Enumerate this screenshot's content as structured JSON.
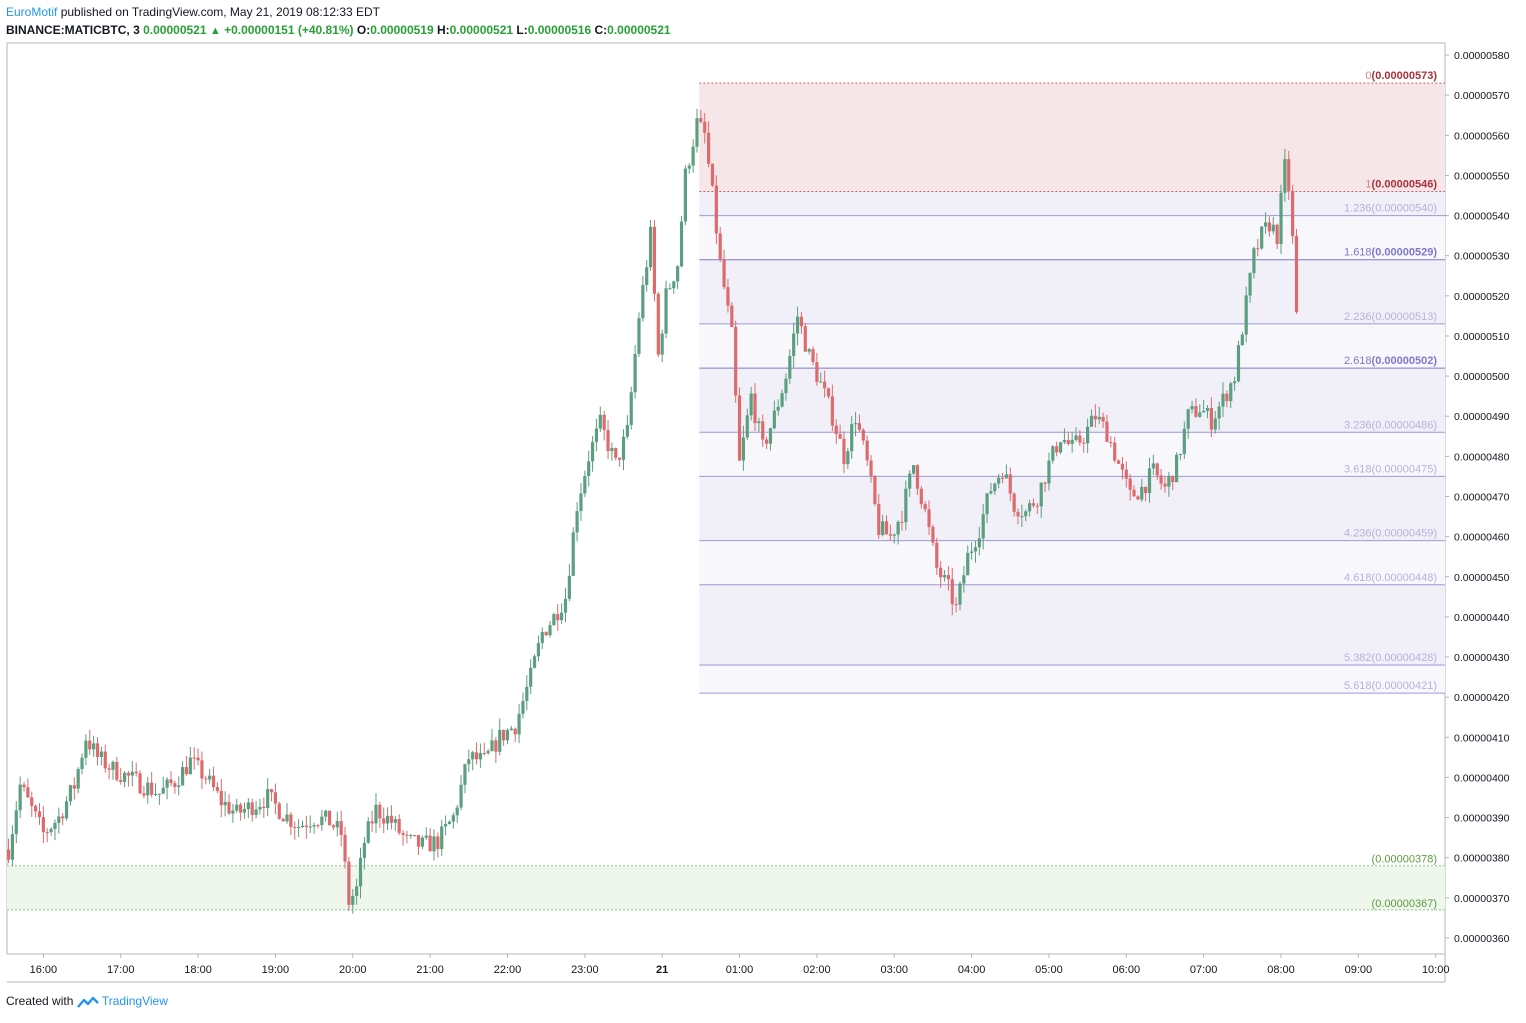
{
  "header": {
    "author": "EuroMotif",
    "published_text": "published on TradingView.com, May 21, 2019 08:12:33 EDT",
    "symbol": "BINANCE:MATICBTC, 3",
    "last": "0.00000521",
    "change": "+0.00000151 (+40.81%)",
    "o_label": "O:",
    "o_value": "0.00000519",
    "h_label": "H:",
    "h_value": "0.00000521",
    "l_label": "L:",
    "l_value": "0.00000516",
    "c_label": "C:",
    "c_value": "0.00000521"
  },
  "footer": {
    "created_with": "Created with",
    "brand": "TradingView"
  },
  "colors": {
    "up": "#5b9e80",
    "down": "#dc6b6e",
    "grid_border": "#b2b5be",
    "fib_line": "#9d99d6",
    "fib_label": "#b4b2dc",
    "fib_strong": "#7e78c8",
    "red_zone": "#f7e6e8",
    "red_line": "#cf5f66",
    "red_label": "#a8323a",
    "green_zone": "#eff6ec",
    "green_line": "#8fc28f",
    "green_label": "#5a9e40"
  },
  "chart_data": {
    "type": "candlestick",
    "symbol": "BINANCE:MATICBTC",
    "interval_minutes": 3,
    "ylim": [
      3.56e-06,
      5.83e-06
    ],
    "y_ticks": [
      "0.00000360",
      "0.00000370",
      "0.00000380",
      "0.00000390",
      "0.00000400",
      "0.00000410",
      "0.00000420",
      "0.00000430",
      "0.00000440",
      "0.00000450",
      "0.00000460",
      "0.00000470",
      "0.00000480",
      "0.00000490",
      "0.00000500",
      "0.00000510",
      "0.00000520",
      "0.00000530",
      "0.00000540",
      "0.00000550",
      "0.00000560",
      "0.00000570",
      "0.00000580"
    ],
    "x_ticks": [
      "16:00",
      "17:00",
      "18:00",
      "19:00",
      "20:00",
      "21:00",
      "22:00",
      "23:00",
      "21",
      "01:00",
      "02:00",
      "03:00",
      "04:00",
      "05:00",
      "06:00",
      "07:00",
      "08:00",
      "09:00",
      "10:00"
    ],
    "x_ticks_hours": [
      16,
      17,
      18,
      19,
      20,
      21,
      22,
      23,
      24,
      25,
      26,
      27,
      28,
      29,
      30,
      31,
      32,
      33,
      34
    ],
    "time_range_hours": [
      15.53,
      34.12
    ],
    "close_path": [
      [
        15.55,
        3.82e-06
      ],
      [
        15.7,
        3.98e-06
      ],
      [
        15.85,
        3.92e-06
      ],
      [
        16.0,
        3.86e-06
      ],
      [
        16.2,
        3.9e-06
      ],
      [
        16.4,
        3.98e-06
      ],
      [
        16.55,
        4.1e-06
      ],
      [
        16.7,
        4.05e-06
      ],
      [
        16.9,
        4.02e-06
      ],
      [
        17.1,
        4e-06
      ],
      [
        17.3,
        3.98e-06
      ],
      [
        17.5,
        3.96e-06
      ],
      [
        17.7,
        3.99e-06
      ],
      [
        17.9,
        4.04e-06
      ],
      [
        18.1,
        4e-06
      ],
      [
        18.3,
        3.94e-06
      ],
      [
        18.5,
        3.91e-06
      ],
      [
        18.7,
        3.93e-06
      ],
      [
        18.9,
        3.95e-06
      ],
      [
        19.1,
        3.91e-06
      ],
      [
        19.3,
        3.88e-06
      ],
      [
        19.5,
        3.9e-06
      ],
      [
        19.7,
        3.89e-06
      ],
      [
        19.85,
        3.86e-06
      ],
      [
        19.95,
        3.69e-06
      ],
      [
        20.05,
        3.72e-06
      ],
      [
        20.15,
        3.84e-06
      ],
      [
        20.3,
        3.92e-06
      ],
      [
        20.5,
        3.89e-06
      ],
      [
        20.7,
        3.84e-06
      ],
      [
        20.9,
        3.83e-06
      ],
      [
        21.1,
        3.84e-06
      ],
      [
        21.3,
        3.9e-06
      ],
      [
        21.5,
        4.05e-06
      ],
      [
        21.7,
        4.04e-06
      ],
      [
        21.9,
        4.1e-06
      ],
      [
        22.1,
        4.13e-06
      ],
      [
        22.3,
        4.25e-06
      ],
      [
        22.45,
        4.36e-06
      ],
      [
        22.6,
        4.4e-06
      ],
      [
        22.75,
        4.45e-06
      ],
      [
        22.9,
        4.68e-06
      ],
      [
        23.05,
        4.8e-06
      ],
      [
        23.2,
        4.88e-06
      ],
      [
        23.4,
        4.78e-06
      ],
      [
        23.55,
        4.86e-06
      ],
      [
        23.7,
        5.15e-06
      ],
      [
        23.85,
        5.35e-06
      ],
      [
        23.95,
        5.05e-06
      ],
      [
        24.05,
        5.2e-06
      ],
      [
        24.2,
        5.28e-06
      ],
      [
        24.3,
        5.5e-06
      ],
      [
        24.45,
        5.63e-06
      ],
      [
        24.55,
        5.6e-06
      ],
      [
        24.65,
        5.45e-06
      ],
      [
        24.75,
        5.28e-06
      ],
      [
        24.9,
        5.1e-06
      ],
      [
        25.0,
        4.78e-06
      ],
      [
        25.15,
        4.95e-06
      ],
      [
        25.3,
        4.82e-06
      ],
      [
        25.45,
        4.9e-06
      ],
      [
        25.6,
        5e-06
      ],
      [
        25.75,
        5.15e-06
      ],
      [
        25.9,
        5.05e-06
      ],
      [
        26.05,
        4.98e-06
      ],
      [
        26.2,
        4.9e-06
      ],
      [
        26.35,
        4.8e-06
      ],
      [
        26.5,
        4.9e-06
      ],
      [
        26.65,
        4.78e-06
      ],
      [
        26.8,
        4.62e-06
      ],
      [
        26.95,
        4.6e-06
      ],
      [
        27.1,
        4.66e-06
      ],
      [
        27.25,
        4.78e-06
      ],
      [
        27.4,
        4.66e-06
      ],
      [
        27.55,
        4.52e-06
      ],
      [
        27.7,
        4.47e-06
      ],
      [
        27.8,
        4.42e-06
      ],
      [
        27.95,
        4.55e-06
      ],
      [
        28.1,
        4.62e-06
      ],
      [
        28.25,
        4.72e-06
      ],
      [
        28.4,
        4.77e-06
      ],
      [
        28.55,
        4.68e-06
      ],
      [
        28.7,
        4.66e-06
      ],
      [
        28.85,
        4.7e-06
      ],
      [
        29.0,
        4.78e-06
      ],
      [
        29.15,
        4.85e-06
      ],
      [
        29.3,
        4.82e-06
      ],
      [
        29.45,
        4.85e-06
      ],
      [
        29.6,
        4.9e-06
      ],
      [
        29.75,
        4.86e-06
      ],
      [
        29.9,
        4.78e-06
      ],
      [
        30.05,
        4.7e-06
      ],
      [
        30.2,
        4.72e-06
      ],
      [
        30.35,
        4.76e-06
      ],
      [
        30.5,
        4.72e-06
      ],
      [
        30.65,
        4.78e-06
      ],
      [
        30.8,
        4.9e-06
      ],
      [
        30.95,
        4.92e-06
      ],
      [
        31.1,
        4.89e-06
      ],
      [
        31.25,
        4.94e-06
      ],
      [
        31.4,
        5e-06
      ],
      [
        31.55,
        5.18e-06
      ],
      [
        31.65,
        5.3e-06
      ],
      [
        31.75,
        5.35e-06
      ],
      [
        31.85,
        5.38e-06
      ],
      [
        31.95,
        5.35e-06
      ],
      [
        32.05,
        5.52e-06
      ],
      [
        32.12,
        5.45e-06
      ],
      [
        32.2,
        5.15e-06
      ],
      [
        32.22,
        5.21e-06
      ]
    ],
    "fib_anchor": {
      "start_hours": 24.48,
      "end_hours": 34.12
    },
    "fib_levels": [
      {
        "ratio": "0",
        "price": "0.00000573",
        "value": 5.73e-06
      },
      {
        "ratio": "1",
        "price": "0.00000546",
        "value": 5.46e-06
      },
      {
        "ratio": "1.236",
        "price": "0.00000540",
        "value": 5.4e-06
      },
      {
        "ratio": "1.618",
        "price": "0.00000529",
        "value": 5.29e-06
      },
      {
        "ratio": "2.236",
        "price": "0.00000513",
        "value": 5.13e-06
      },
      {
        "ratio": "2.618",
        "price": "0.00000502",
        "value": 5.02e-06
      },
      {
        "ratio": "3.236",
        "price": "0.00000486",
        "value": 4.86e-06
      },
      {
        "ratio": "3.618",
        "price": "0.00000475",
        "value": 4.75e-06
      },
      {
        "ratio": "4.236",
        "price": "0.00000459",
        "value": 4.59e-06
      },
      {
        "ratio": "4.618",
        "price": "0.00000448",
        "value": 4.48e-06
      },
      {
        "ratio": "5.382",
        "price": "0.00000428",
        "value": 4.28e-06
      },
      {
        "ratio": "5.618",
        "price": "0.00000421",
        "value": 4.21e-06
      }
    ],
    "support_zone": {
      "upper": {
        "label": "(0.00000378)",
        "value": 3.78e-06
      },
      "lower": {
        "label": "(0.00000367)",
        "value": 3.67e-06
      }
    }
  }
}
